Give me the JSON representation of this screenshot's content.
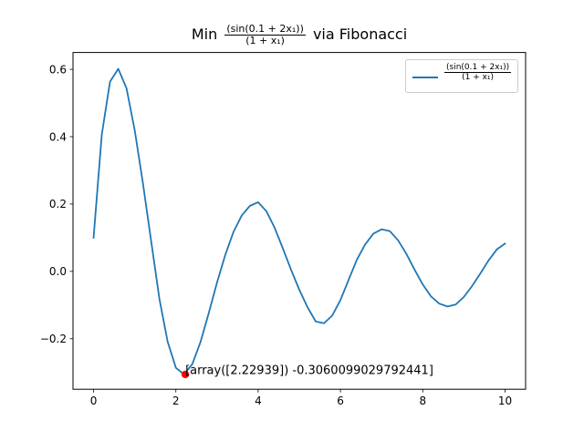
{
  "chart_data": {
    "type": "line",
    "title": {
      "prefix": "Min",
      "numerator": "(sin(0.1 + 2x₁))",
      "denominator": "(1 + x₁)",
      "suffix": "via Fibonacci"
    },
    "xlabel": "",
    "ylabel": "",
    "xlim": [
      -0.5,
      10.5
    ],
    "ylim": [
      -0.35,
      0.65
    ],
    "xticks": [
      0,
      2,
      4,
      6,
      8,
      10
    ],
    "xtick_labels": [
      "0",
      "2",
      "4",
      "6",
      "8",
      "10"
    ],
    "yticks": [
      -0.2,
      0.0,
      0.2,
      0.4,
      0.6
    ],
    "ytick_labels": [
      "−0.2",
      "0.0",
      "0.2",
      "0.4",
      "0.6"
    ],
    "grid": false,
    "legend": {
      "placement": "top-right",
      "entries": [
        {
          "numerator": "(sin(0.1 + 2x₁))",
          "denominator": "(1 + x₁)"
        }
      ]
    },
    "series": [
      {
        "color": "#1f77b4",
        "x": [
          0,
          0.2,
          0.4,
          0.6,
          0.8,
          1.0,
          1.2,
          1.4,
          1.6,
          1.8,
          2.0,
          2.2,
          2.4,
          2.6,
          2.8,
          3.0,
          3.2,
          3.4,
          3.6,
          3.8,
          4.0,
          4.2,
          4.4,
          4.6,
          4.8,
          5.0,
          5.2,
          5.4,
          5.6,
          5.8,
          6.0,
          6.2,
          6.4,
          6.6,
          6.8,
          7.0,
          7.2,
          7.4,
          7.6,
          7.8,
          8.0,
          8.2,
          8.4,
          8.6,
          8.8,
          9.0,
          9.2,
          9.4,
          9.6,
          9.8,
          10.0
        ],
        "y": [
          0.0998,
          0.4064,
          0.5633,
          0.6015,
          0.5439,
          0.4193,
          0.2613,
          0.0894,
          -0.0814,
          -0.2088,
          -0.2863,
          -0.3058,
          -0.2753,
          -0.2093,
          -0.1236,
          -0.0333,
          0.0487,
          0.117,
          0.1658,
          0.1947,
          0.2053,
          0.1786,
          0.1297,
          0.0682,
          0.0049,
          -0.0546,
          -0.1065,
          -0.1489,
          -0.154,
          -0.1313,
          -0.0852,
          -0.0246,
          0.0349,
          0.08,
          0.112,
          0.1249,
          0.1195,
          0.0924,
          0.0525,
          0.0054,
          -0.0387,
          -0.0742,
          -0.0957,
          -0.1042,
          -0.0985,
          -0.0758,
          -0.0434,
          -0.0062,
          0.0325,
          0.0651,
          0.0824
        ]
      }
    ],
    "marker": {
      "x": 2.22939,
      "y": -0.3060099029792441,
      "color": "#ff0000",
      "label": "[array([2.22939]) -0.3060099029792441]"
    }
  }
}
